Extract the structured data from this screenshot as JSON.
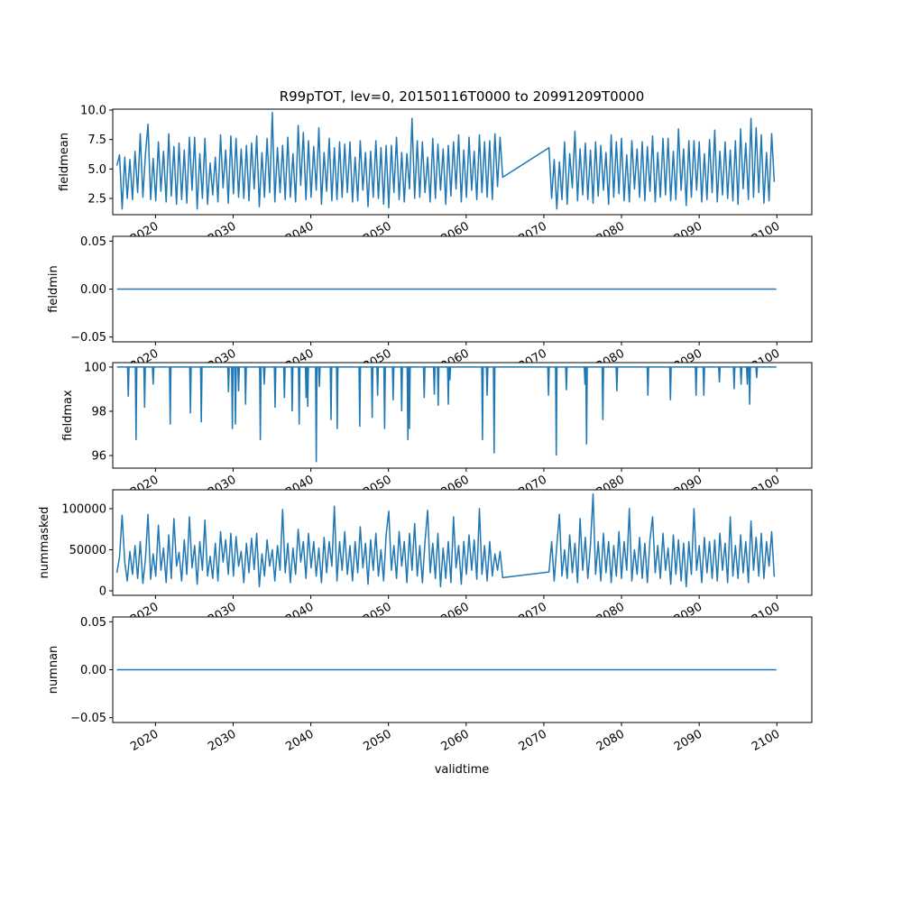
{
  "chart_data": {
    "type": "line",
    "title": "R99pTOT, lev=0, 20150116T0000 to 20991209T0000",
    "xlabel": "validtime",
    "xlim": [
      2014.5,
      2104.5
    ],
    "xticks": [
      2020,
      2030,
      2040,
      2050,
      2060,
      2070,
      2080,
      2090,
      2100
    ],
    "xtick_labels": [
      "2020",
      "2030",
      "2040",
      "2050",
      "2060",
      "2070",
      "2080",
      "2090",
      "2100"
    ],
    "line_color": "#1f77b4",
    "panels": [
      {
        "ylabel": "fieldmean",
        "ylim": [
          1.12,
          10.08
        ],
        "yticks": [
          2.5,
          5.0,
          7.5,
          10.0
        ],
        "ytick_labels": [
          "2.5",
          "5.0",
          "7.5",
          "10.0"
        ],
        "segments": [
          {
            "start": 2015.04,
            "step": 0.3333,
            "values": [
              5.3,
              6.2,
              1.6,
              6.0,
              2.5,
              5.8,
              2.4,
              6.5,
              3.0,
              8.0,
              2.6,
              6.2,
              8.8,
              2.4,
              5.9,
              2.3,
              7.3,
              3.1,
              6.5,
              2.2,
              8.0,
              2.7,
              6.9,
              2.0,
              7.2,
              2.4,
              6.6,
              2.1,
              7.7,
              3.2,
              7.7,
              1.6,
              6.3,
              2.5,
              7.6,
              2.0,
              5.5,
              2.8,
              6.0,
              2.2,
              7.9,
              3.4,
              6.6,
              2.1,
              7.8,
              2.9,
              7.6,
              2.6,
              6.7,
              2.5,
              7.0,
              2.3,
              7.2,
              3.3,
              7.8,
              1.8,
              6.4,
              2.6,
              7.6,
              3.0,
              9.8,
              2.2,
              6.8,
              3.0,
              7.0,
              2.4,
              7.7,
              2.6,
              6.3,
              2.2,
              8.7,
              3.6,
              8.1,
              2.4,
              7.4,
              2.6,
              6.9,
              3.2,
              8.5,
              2.0,
              6.4,
              3.1,
              7.6,
              2.3,
              6.8,
              2.4,
              7.3,
              2.6,
              7.1,
              3.0,
              7.3,
              2.2,
              6.0,
              2.3,
              7.4,
              3.2,
              6.4,
              1.8,
              6.5,
              2.6,
              7.4,
              2.5,
              6.8,
              2.0,
              7.0,
              1.7,
              7.0,
              3.0,
              7.7,
              2.4,
              6.4,
              2.2,
              6.3,
              3.3,
              9.3,
              2.5,
              7.4,
              2.6,
              7.3,
              3.0,
              6.0,
              2.2,
              7.6,
              2.5,
              7.1,
              3.2,
              6.7,
              2.0,
              7.0,
              2.7,
              7.3,
              3.3,
              7.9,
              2.2,
              6.6,
              2.6,
              7.7,
              3.2,
              6.5,
              2.4,
              7.9,
              3.0,
              7.3,
              2.6,
              7.4,
              2.4,
              8.0,
              3.5,
              7.7,
              4.3
            ]
          },
          {
            "start": 2070.67,
            "step": 0.3333,
            "values": [
              6.8,
              2.5,
              5.8,
              1.6,
              5.6,
              2.4,
              7.3,
              2.0,
              6.3,
              3.4,
              8.2,
              2.3,
              6.7,
              2.8,
              7.2,
              2.4,
              6.6,
              2.1,
              7.3,
              2.7,
              7.0,
              3.2,
              6.4,
              2.0,
              7.9,
              2.6,
              7.3,
              2.9,
              7.6,
              2.3,
              6.2,
              2.2,
              7.4,
              3.3,
              6.7,
              2.6,
              7.3,
              2.3,
              6.9,
              3.1,
              7.8,
              2.2,
              6.4,
              2.6,
              7.6,
              2.8,
              7.6,
              2.3,
              6.5,
              2.4,
              8.4,
              3.2,
              6.7,
              1.9,
              7.4,
              2.6,
              7.4,
              3.2,
              7.3,
              2.2,
              6.3,
              2.4,
              7.5,
              3.0,
              8.3,
              2.2,
              6.5,
              2.8,
              7.3,
              2.5,
              6.6,
              2.3,
              7.4,
              2.0,
              8.4,
              3.3,
              7.2,
              2.4,
              9.3,
              2.6,
              8.5,
              3.0,
              7.9,
              2.1,
              6.4,
              2.3,
              8.0,
              3.9
            ]
          }
        ]
      },
      {
        "ylabel": "fieldmin",
        "ylim": [
          -0.055,
          0.055
        ],
        "yticks": [
          -0.05,
          0.0,
          0.05
        ],
        "ytick_labels": [
          "−0.05",
          "0.00",
          "0.05"
        ],
        "segments": [
          {
            "start": 2015.04,
            "step": 84.9,
            "values": [
              0,
              0
            ]
          }
        ]
      },
      {
        "ylabel": "fieldmax",
        "ylim": [
          95.43,
          100.2
        ],
        "yticks": [
          96,
          98,
          100
        ],
        "ytick_labels": [
          "96",
          "98",
          "100"
        ],
        "baseline": 100,
        "range": [
          2015.04,
          2099.94
        ],
        "dips": [
          [
            2016.5,
            98.66
          ],
          [
            2017.5,
            96.7
          ],
          [
            2018.6,
            98.16
          ],
          [
            2019.7,
            99.2
          ],
          [
            2021.9,
            97.4
          ],
          [
            2024.5,
            97.9
          ],
          [
            2025.9,
            97.5
          ],
          [
            2029.4,
            98.86
          ],
          [
            2029.9,
            97.2
          ],
          [
            2030.3,
            97.4
          ],
          [
            2030.7,
            98.9
          ],
          [
            2031.6,
            98.3
          ],
          [
            2033.5,
            96.7
          ],
          [
            2034.0,
            99.2
          ],
          [
            2035.4,
            98.16
          ],
          [
            2036.6,
            98.6
          ],
          [
            2037.6,
            98.0
          ],
          [
            2038.5,
            97.4
          ],
          [
            2039.4,
            98.6
          ],
          [
            2039.6,
            98.2
          ],
          [
            2040.7,
            95.7
          ],
          [
            2041.1,
            99.1
          ],
          [
            2042.6,
            97.6
          ],
          [
            2043.4,
            97.2
          ],
          [
            2046.3,
            97.3
          ],
          [
            2047.9,
            97.7
          ],
          [
            2048.6,
            98.7
          ],
          [
            2049.5,
            97.2
          ],
          [
            2050.6,
            98.5
          ],
          [
            2051.7,
            98.0
          ],
          [
            2052.5,
            96.7
          ],
          [
            2052.7,
            97.2
          ],
          [
            2054.6,
            98.6
          ],
          [
            2055.9,
            98.75
          ],
          [
            2056.4,
            98.25
          ],
          [
            2057.7,
            98.3
          ],
          [
            2057.9,
            99.4
          ],
          [
            2062.1,
            96.7
          ],
          [
            2062.7,
            98.7
          ],
          [
            2063.6,
            96.1
          ],
          [
            2070.6,
            98.7
          ],
          [
            2071.6,
            96.0
          ],
          [
            2072.9,
            98.95
          ],
          [
            2075.3,
            99.2
          ],
          [
            2075.5,
            96.5
          ],
          [
            2077.6,
            97.6
          ],
          [
            2079.4,
            98.9
          ],
          [
            2083.4,
            98.7
          ],
          [
            2086.3,
            98.5
          ],
          [
            2089.6,
            98.7
          ],
          [
            2090.6,
            98.7
          ],
          [
            2092.6,
            99.3
          ],
          [
            2094.5,
            99.0
          ],
          [
            2095.4,
            99.2
          ],
          [
            2096.2,
            99.2
          ],
          [
            2096.5,
            98.3
          ],
          [
            2097.4,
            99.5
          ]
        ]
      },
      {
        "ylabel": "nummasked",
        "ylim": [
          -5500,
          123000
        ],
        "yticks": [
          0,
          50000,
          100000
        ],
        "ytick_labels": [
          "0",
          "50000",
          "100000"
        ],
        "segments": [
          {
            "start": 2015.04,
            "step": 0.3333,
            "values": [
              22000,
              41000,
              92000,
              35000,
              12000,
              48000,
              20000,
              55000,
              15000,
              60000,
              9000,
              38000,
              93000,
              14000,
              45000,
              18000,
              80000,
              25000,
              52000,
              10000,
              68000,
              15000,
              88000,
              30000,
              47000,
              12000,
              62000,
              20000,
              90000,
              28000,
              55000,
              8000,
              60000,
              25000,
              86000,
              18000,
              42000,
              15000,
              58000,
              12000,
              72000,
              35000,
              62000,
              20000,
              70000,
              18000,
              66000,
              30000,
              48000,
              10000,
              58000,
              22000,
              64000,
              26000,
              70000,
              5000,
              45000,
              18000,
              62000,
              30000,
              50000,
              12000,
              55000,
              25000,
              99000,
              22000,
              58000,
              10000,
              52000,
              20000,
              75000,
              35000,
              60000,
              15000,
              70000,
              28000,
              60000,
              18000,
              52000,
              10000,
              65000,
              22000,
              60000,
              30000,
              103000,
              12000,
              60000,
              25000,
              72000,
              20000,
              55000,
              12000,
              60000,
              22000,
              78000,
              28000,
              58000,
              8000,
              62000,
              25000,
              70000,
              18000,
              50000,
              12000,
              68000,
              97000,
              25000,
              55000,
              15000,
              72000,
              30000,
              60000,
              10000,
              70000,
              25000,
              82000,
              18000,
              55000,
              10000,
              60000,
              98000,
              22000,
              58000,
              15000,
              70000,
              5000,
              52000,
              15000,
              60000,
              10000,
              90000,
              28000,
              55000,
              8000,
              60000,
              20000,
              68000,
              25000,
              62000,
              14000,
              100000,
              20000,
              55000,
              12000,
              60000,
              18000,
              45000,
              25000,
              48000,
              16000
            ]
          },
          {
            "start": 2070.67,
            "step": 0.3333,
            "values": [
              23000,
              60000,
              12000,
              55000,
              93000,
              18000,
              50000,
              15000,
              68000,
              22000,
              58000,
              10000,
              88000,
              25000,
              65000,
              15000,
              55000,
              118000,
              20000,
              60000,
              12000,
              70000,
              22000,
              60000,
              10000,
              55000,
              18000,
              72000,
              15000,
              60000,
              25000,
              100000,
              12000,
              50000,
              20000,
              65000,
              15000,
              58000,
              10000,
              62000,
              90000,
              22000,
              55000,
              15000,
              70000,
              25000,
              52000,
              8000,
              68000,
              20000,
              62000,
              12000,
              58000,
              5000,
              60000,
              20000,
              100000,
              25000,
              55000,
              10000,
              65000,
              22000,
              60000,
              15000,
              62000,
              12000,
              70000,
              25000,
              58000,
              10000,
              90000,
              18000,
              55000,
              15000,
              68000,
              22000,
              60000,
              10000,
              85000,
              25000,
              65000,
              18000,
              70000,
              15000,
              60000,
              30000,
              72000,
              17000
            ]
          }
        ]
      },
      {
        "ylabel": "numnan",
        "ylim": [
          -0.055,
          0.055
        ],
        "yticks": [
          -0.05,
          0.0,
          0.05
        ],
        "ytick_labels": [
          "−0.05",
          "0.00",
          "0.05"
        ],
        "segments": [
          {
            "start": 2015.04,
            "step": 84.9,
            "values": [
              0,
              0
            ]
          }
        ]
      }
    ]
  }
}
